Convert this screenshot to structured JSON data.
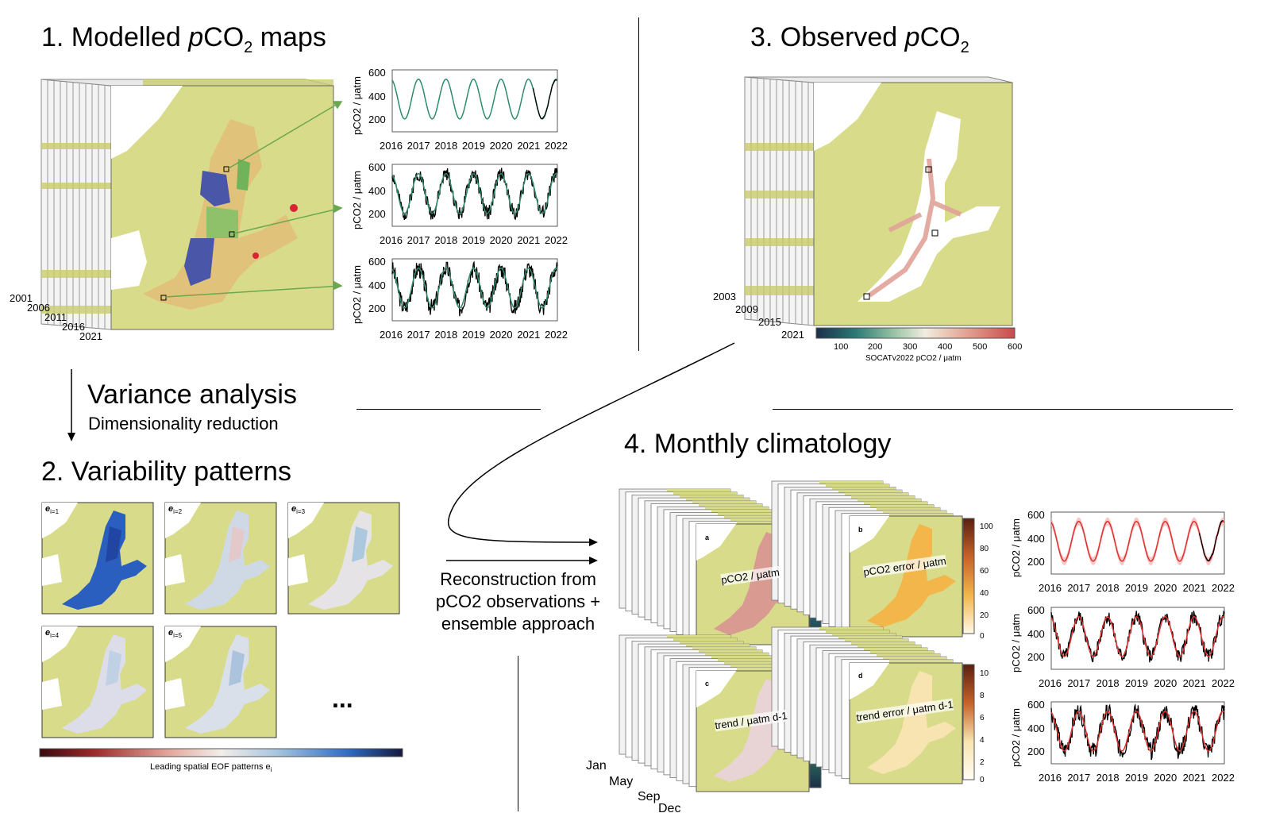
{
  "panel1": {
    "title_prefix": "1. Modelled ",
    "title_var": "p",
    "title_mid": "CO",
    "title_sub": "2",
    "title_suffix": " maps",
    "year_labels": [
      "2001",
      "2006",
      "2011",
      "2016",
      "2021"
    ]
  },
  "panel3": {
    "title_prefix": "3. Observed ",
    "title_var": "p",
    "title_mid": "CO",
    "title_sub": "2",
    "year_labels": [
      "2003",
      "2009",
      "2015",
      "2021"
    ],
    "colorbar_ticks": [
      "100",
      "200",
      "300",
      "400",
      "500",
      "600"
    ],
    "colorbar_label": "SOCATv2022 pCO2 / μatm"
  },
  "variance": {
    "heading": "Variance analysis",
    "sub": "Dimensionality reduction"
  },
  "panel2": {
    "title": "2. Variability patterns",
    "eof_labels": [
      "e",
      "e",
      "e",
      "e",
      "e"
    ],
    "eof_index": [
      "i=1",
      "i=2",
      "i=3",
      "i=4",
      "i=5"
    ],
    "ellipsis": "...",
    "colorbar_label": "Leading spatial EOF patterns e",
    "colorbar_label_sub": "i"
  },
  "panel4": {
    "title": "4. Monthly climatology",
    "maps": [
      {
        "letter": "a",
        "label": "pCO2 / μatm"
      },
      {
        "letter": "b",
        "label": "pCO2 error / μatm"
      },
      {
        "letter": "c",
        "label": "trend / μatm d-1"
      },
      {
        "letter": "d",
        "label": "trend error / μatm d-1"
      }
    ],
    "months": [
      "Jan",
      "May",
      "Sep",
      "Dec"
    ],
    "cb_b_ticks": [
      "100",
      "80",
      "60",
      "40",
      "20",
      "0"
    ],
    "cb_d_ticks": [
      "10",
      "8",
      "6",
      "4",
      "2",
      "0"
    ]
  },
  "reconstruction": {
    "line1": "Reconstruction from",
    "line2": "pCO2 observations +",
    "line3": "ensemble approach"
  },
  "timeseries": {
    "x_ticks": [
      "2016",
      "2017",
      "2018",
      "2019",
      "2020",
      "2021",
      "2022"
    ],
    "y_ticks": [
      "600",
      "400",
      "200"
    ],
    "ylabel": "pCO2 / μatm"
  },
  "colors": {
    "land": "#d8dc8a",
    "model_line": "#2e8b6b",
    "recon_line": "#e03030",
    "obs": "#000000"
  }
}
